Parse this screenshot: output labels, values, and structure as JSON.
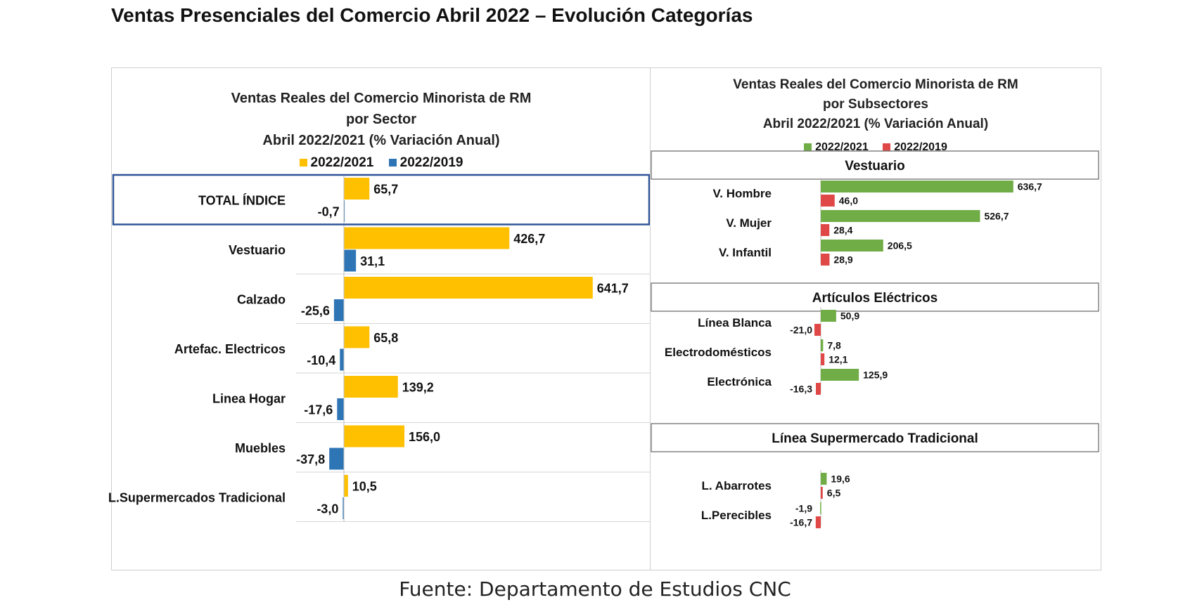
{
  "page": {
    "title": "Ventas Presenciales del Comercio Abril 2022 – Evolución Categorías",
    "source": "Fuente: Departamento de Estudios CNC"
  },
  "chart_data": [
    {
      "type": "bar",
      "orientation": "horizontal",
      "title": [
        "Ventas Reales del Comercio Minorista de RM",
        "por Sector",
        "Abril 2022/2021 (% Variación Anual)"
      ],
      "legend_position": "top",
      "categories": [
        "TOTAL ÍNDICE",
        "Vestuario",
        "Calzado",
        "Artefac. Electricos",
        "Linea Hogar",
        "Muebles",
        "L.Supermercados Tradicional"
      ],
      "highlighted_category": "TOTAL ÍNDICE",
      "series": [
        {
          "name": "2022/2021",
          "color": "#FFC000",
          "values": [
            65.7,
            426.7,
            641.7,
            65.8,
            139.2,
            156.0,
            10.5
          ],
          "labels": [
            "65,7",
            "426,7",
            "641,7",
            "65,8",
            "139,2",
            "156,0",
            "10,5"
          ]
        },
        {
          "name": "2022/2019",
          "color": "#2E75B6",
          "values": [
            -0.7,
            31.1,
            -25.6,
            -10.4,
            -17.6,
            -37.8,
            -3.0
          ],
          "labels": [
            "-0,7",
            "31,1",
            "-25,6",
            "-10,4",
            "-17,6",
            "-37,8",
            "-3,0"
          ]
        }
      ],
      "xlim": [
        -40,
        660
      ]
    },
    {
      "type": "bar",
      "orientation": "horizontal",
      "title": [
        "Ventas Reales del Comercio Minorista de RM",
        "por Subsectores",
        "Abril 2022/2021 (% Variación Anual)"
      ],
      "legend_position": "top",
      "groups": [
        {
          "name": "Vestuario",
          "categories": [
            "V. Hombre",
            "V. Mujer",
            "V. Infantil"
          ],
          "series": [
            {
              "name": "2022/2021",
              "values": [
                636.7,
                526.7,
                206.5
              ],
              "labels": [
                "636,7",
                "526,7",
                "206,5"
              ]
            },
            {
              "name": "2022/2019",
              "values": [
                46.0,
                28.4,
                28.9
              ],
              "labels": [
                "46,0",
                "28,4",
                "28,9"
              ]
            }
          ]
        },
        {
          "name": "Artículos Eléctricos",
          "categories": [
            "Línea Blanca",
            "Electrodomésticos",
            "Electrónica"
          ],
          "series": [
            {
              "name": "2022/2021",
              "values": [
                50.9,
                7.8,
                125.9
              ],
              "labels": [
                "50,9",
                "7,8",
                "125,9"
              ]
            },
            {
              "name": "2022/2019",
              "values": [
                -21.0,
                12.1,
                -16.3
              ],
              "labels": [
                "-21,0",
                "12,1",
                "-16,3"
              ]
            }
          ]
        },
        {
          "name": "Línea Supermercado Tradicional",
          "categories": [
            "L. Abarrotes",
            "L.Perecibles"
          ],
          "series": [
            {
              "name": "2022/2021",
              "values": [
                19.6,
                -1.9
              ],
              "labels": [
                "19,6",
                "-1,9"
              ]
            },
            {
              "name": "2022/2019",
              "values": [
                6.5,
                -16.7
              ],
              "labels": [
                "6,5",
                "-16,7"
              ]
            }
          ]
        }
      ],
      "series_names": [
        "2022/2021",
        "2022/2019"
      ],
      "colors": [
        "#70AD47",
        "#E04848"
      ],
      "xlim": [
        -25,
        660
      ]
    }
  ]
}
